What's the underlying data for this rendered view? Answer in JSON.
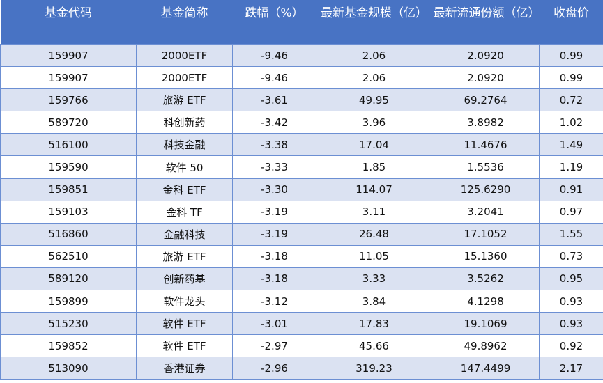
{
  "table": {
    "headers": [
      "基金代码",
      "基金简称",
      "跌幅（%）",
      "最新基金规模（亿）",
      "最新流通份额（亿）",
      "收盘价"
    ],
    "rows": [
      [
        "159907",
        "2000ETF",
        "-9.46",
        "2.06",
        "2.0920",
        "0.99"
      ],
      [
        "159907",
        "2000ETF",
        "-9.46",
        "2.06",
        "2.0920",
        "0.99"
      ],
      [
        "159766",
        "旅游 ETF",
        "-3.61",
        "49.95",
        "69.2764",
        "0.72"
      ],
      [
        "589720",
        "科创新药",
        "-3.42",
        "3.96",
        "3.8982",
        "1.02"
      ],
      [
        "516100",
        "科技金融",
        "-3.38",
        "17.04",
        "11.4676",
        "1.49"
      ],
      [
        "159590",
        "软件 50",
        "-3.33",
        "1.85",
        "1.5536",
        "1.19"
      ],
      [
        "159851",
        "金科 ETF",
        "-3.30",
        "114.07",
        "125.6290",
        "0.91"
      ],
      [
        "159103",
        "金科 TF",
        "-3.19",
        "3.11",
        "3.2041",
        "0.97"
      ],
      [
        "516860",
        "金融科技",
        "-3.19",
        "26.48",
        "17.1052",
        "1.55"
      ],
      [
        "562510",
        "旅游 ETF",
        "-3.18",
        "11.05",
        "15.1360",
        "0.73"
      ],
      [
        "589120",
        "创新药基",
        "-3.18",
        "3.33",
        "3.5262",
        "0.95"
      ],
      [
        "159899",
        "软件龙头",
        "-3.12",
        "3.84",
        "4.1298",
        "0.93"
      ],
      [
        "515230",
        "软件 ETF",
        "-3.01",
        "17.83",
        "19.1069",
        "0.93"
      ],
      [
        "159852",
        "软件 ETF",
        "-2.97",
        "45.66",
        "49.8962",
        "0.92"
      ],
      [
        "513090",
        "香港证券",
        "-2.96",
        "319.23",
        "147.4499",
        "2.17"
      ]
    ]
  },
  "colors": {
    "header_bg": "#4873c4",
    "header_text": "#ffffff",
    "row_band": "#dbe2f2",
    "row_plain": "#ffffff",
    "grid_line": "#6c8fd3"
  }
}
